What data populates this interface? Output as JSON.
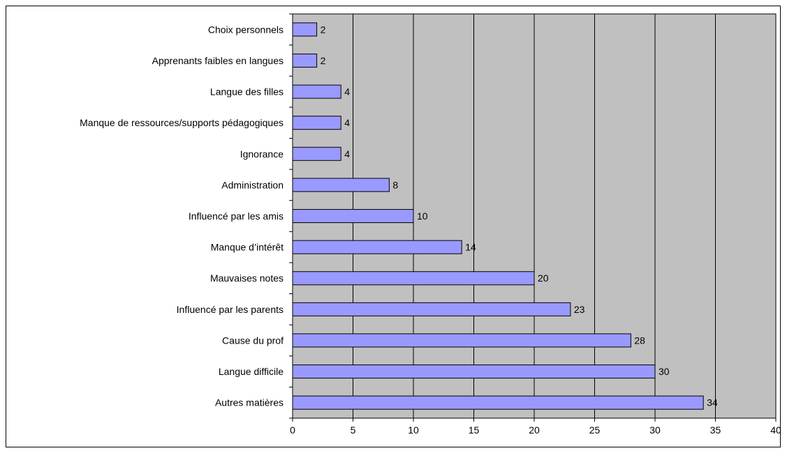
{
  "chart_data": {
    "type": "bar",
    "orientation": "horizontal",
    "categories": [
      "Choix personnels",
      "Apprenants faibles en langues",
      "Langue des filles",
      "Manque de ressources/supports pédagogiques",
      "Ignorance",
      "Administration",
      "Influencé par les amis",
      "Manque d’intérêt",
      "Mauvaises notes",
      "Influencé par les parents",
      "Cause du prof",
      "Langue difficile",
      "Autres matières"
    ],
    "values": [
      2,
      2,
      4,
      4,
      4,
      8,
      10,
      14,
      20,
      23,
      28,
      30,
      34
    ],
    "data_labels": [
      "2",
      "2",
      "4",
      "4",
      "4",
      "8",
      "10",
      "14",
      "20",
      "23",
      "28",
      "30",
      "34"
    ],
    "x_ticks": [
      "0",
      "5",
      "10",
      "15",
      "20",
      "25",
      "30",
      "35",
      "40"
    ],
    "xlim": [
      0,
      40
    ],
    "title": "",
    "xlabel": "",
    "ylabel": "",
    "grid": "vertical gridlines",
    "legend": "none",
    "colors": {
      "bar_fill": "#9999ff",
      "bar_stroke": "#000000",
      "plot_background": "#c0c0c0",
      "grid": "#000000"
    }
  }
}
